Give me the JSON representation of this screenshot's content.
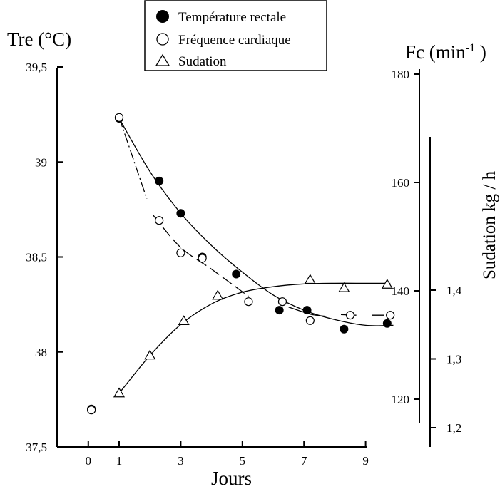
{
  "chart_data": {
    "type": "scatter",
    "xlabel": "Jours",
    "x_ticks": [
      "0",
      "1",
      "3",
      "5",
      "7",
      "9"
    ],
    "xlim": [
      -1,
      10
    ],
    "axes": {
      "left": {
        "label": "Tre (°C)",
        "ylim": [
          37.5,
          39.5
        ],
        "ticks": [
          "37,5",
          "38",
          "38,5",
          "39",
          "39,5"
        ]
      },
      "right1": {
        "label_main": "Fc (min",
        "label_sup": "-1",
        "label_end": " )",
        "ylim": [
          117,
          181
        ],
        "ticks": [
          "120",
          "140",
          "160",
          "180"
        ]
      },
      "right2": {
        "label": "Sudation kg / h",
        "ylim": [
          1.19,
          1.455
        ],
        "ticks": [
          "1,2",
          "1,3",
          "1,4"
        ]
      }
    },
    "legend": [
      {
        "name": "Température rectale",
        "marker": "filled-circle"
      },
      {
        "name": "Fréquence cardiaque",
        "marker": "open-circle"
      },
      {
        "name": "Sudation",
        "marker": "open-triangle"
      }
    ],
    "series": [
      {
        "name": "Température rectale",
        "axis": "left",
        "marker": "filled-circle",
        "points": [
          [
            0.1,
            37.7
          ],
          [
            1,
            39.23
          ],
          [
            2.3,
            38.9
          ],
          [
            3,
            38.73
          ],
          [
            3.7,
            38.5
          ],
          [
            4.8,
            38.41
          ],
          [
            6.2,
            38.22
          ],
          [
            7.1,
            38.22
          ],
          [
            8.3,
            38.12
          ],
          [
            9.7,
            38.15
          ]
        ],
        "fit": [
          [
            1,
            39.23
          ],
          [
            2,
            38.95
          ],
          [
            3,
            38.73
          ],
          [
            4,
            38.56
          ],
          [
            5,
            38.42
          ],
          [
            6,
            38.3
          ],
          [
            7,
            38.22
          ],
          [
            8,
            38.17
          ],
          [
            9,
            38.14
          ],
          [
            9.9,
            38.14
          ]
        ],
        "fit_style": "solid"
      },
      {
        "name": "Fréquence cardiaque",
        "axis": "right1",
        "marker": "open-circle",
        "points": [
          [
            0.1,
            118
          ],
          [
            1,
            172
          ],
          [
            2.3,
            153
          ],
          [
            3,
            147
          ],
          [
            3.7,
            146
          ],
          [
            5.2,
            138
          ],
          [
            6.3,
            138
          ],
          [
            7.2,
            134.5
          ],
          [
            8.5,
            135.5
          ],
          [
            9.8,
            135.5
          ]
        ],
        "fit_segments": [
          {
            "style": "dash-dot",
            "points": [
              [
                1,
                172
              ],
              [
                1.3,
                167
              ],
              [
                1.6,
                162
              ],
              [
                1.9,
                157
              ]
            ]
          },
          {
            "style": "long-dash",
            "points": [
              [
                2.1,
                154
              ],
              [
                3,
                148
              ],
              [
                4,
                144
              ],
              [
                5.2,
                139
              ]
            ]
          },
          {
            "style": "solid",
            "points": [
              [
                6.5,
                137
              ],
              [
                7.2,
                135.7
              ],
              [
                7.7,
                135.3
              ]
            ]
          },
          {
            "style": "solid",
            "points": [
              [
                8.2,
                135.6
              ],
              [
                8.7,
                135.5
              ]
            ]
          },
          {
            "style": "solid",
            "points": [
              [
                9.2,
                135.5
              ],
              [
                9.6,
                135.5
              ]
            ]
          }
        ]
      },
      {
        "name": "Sudation",
        "axis": "right2",
        "marker": "open-triangle",
        "points": [
          [
            1,
            1.25
          ],
          [
            2,
            1.305
          ],
          [
            3.1,
            1.355
          ],
          [
            4.2,
            1.392
          ],
          [
            7.2,
            1.415
          ],
          [
            8.3,
            1.403
          ],
          [
            9.7,
            1.408
          ]
        ],
        "fit": [
          [
            1,
            1.25
          ],
          [
            2,
            1.305
          ],
          [
            3,
            1.35
          ],
          [
            4,
            1.38
          ],
          [
            5,
            1.397
          ],
          [
            6,
            1.405
          ],
          [
            7,
            1.409
          ],
          [
            8,
            1.41
          ],
          [
            9,
            1.41
          ],
          [
            9.8,
            1.41
          ]
        ],
        "fit_style": "solid"
      }
    ]
  }
}
